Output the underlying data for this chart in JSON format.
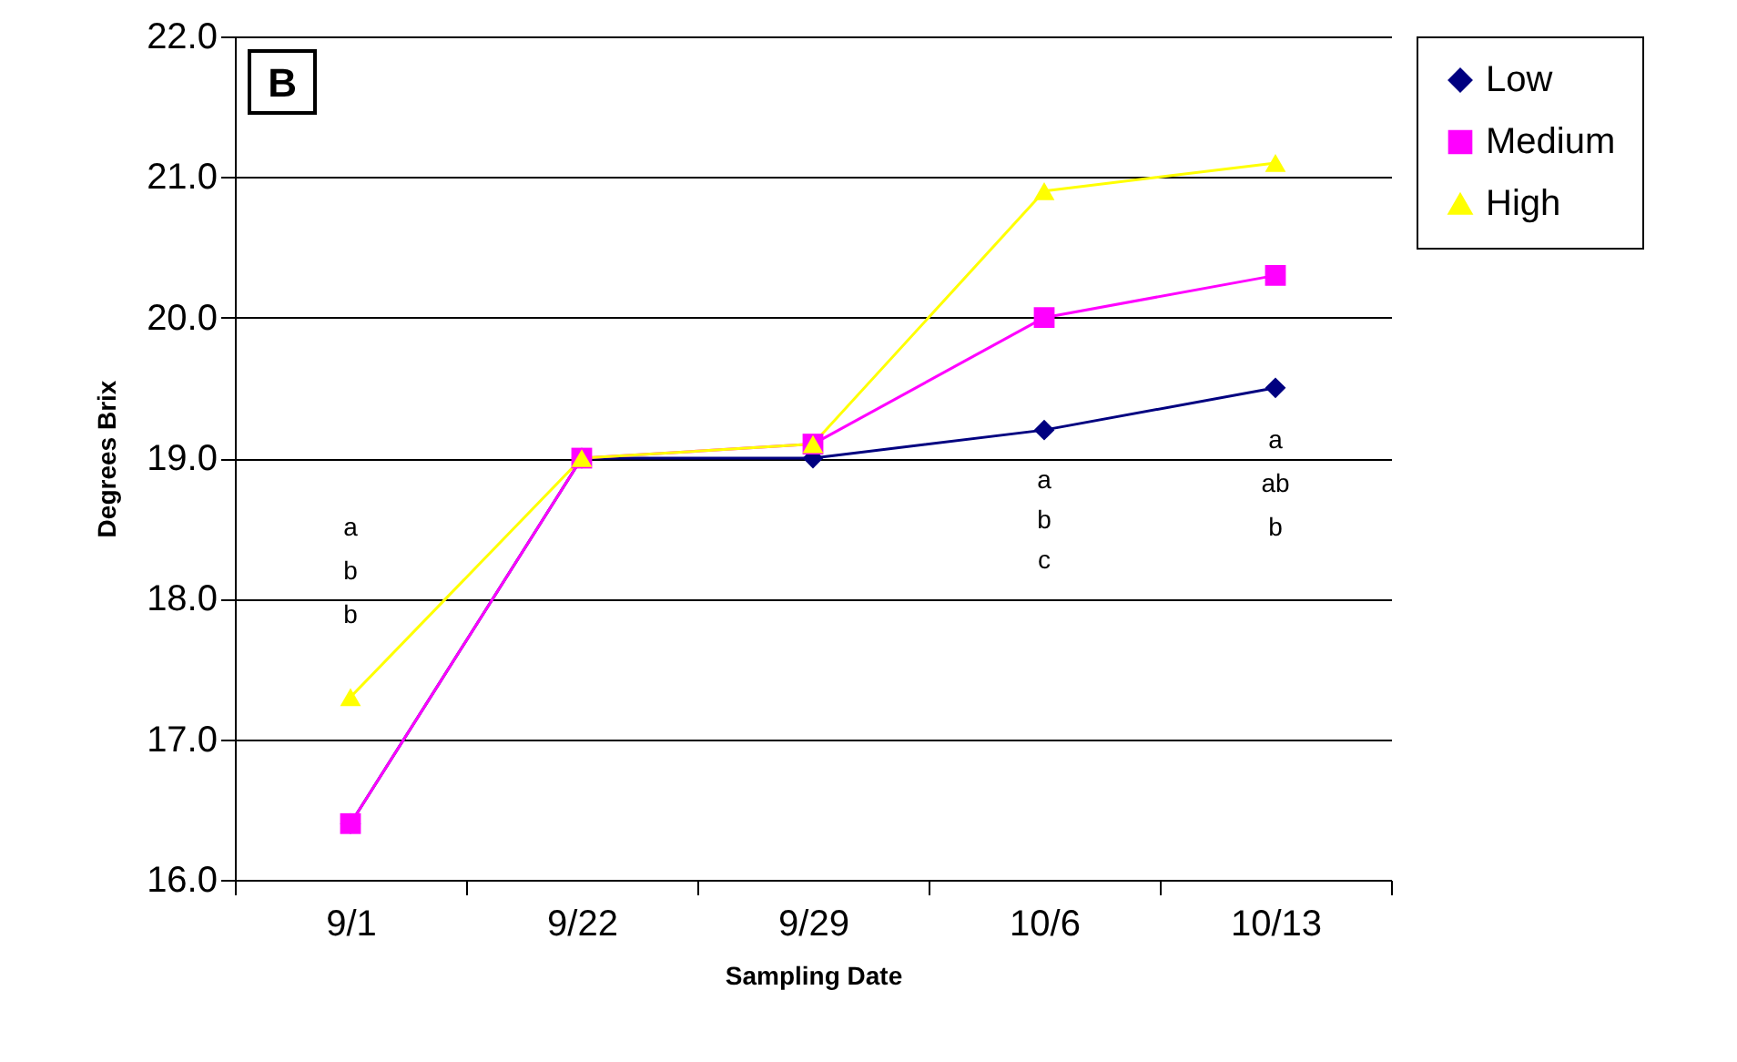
{
  "chart_data": {
    "type": "line",
    "xlabel": "Sampling Date",
    "ylabel": "Degrees Brix",
    "categories": [
      "9/1",
      "9/22",
      "9/29",
      "10/6",
      "10/13"
    ],
    "series": [
      {
        "name": "Low",
        "color": "#000080",
        "marker": "diamond",
        "values": [
          16.4,
          19.0,
          19.0,
          19.2,
          19.5
        ]
      },
      {
        "name": "Medium",
        "color": "#ff00ff",
        "marker": "square",
        "values": [
          16.4,
          19.0,
          19.1,
          20.0,
          20.3
        ]
      },
      {
        "name": "High",
        "color": "#ffff00",
        "marker": "triangle",
        "values": [
          17.3,
          19.0,
          19.1,
          20.9,
          21.1
        ]
      }
    ],
    "ylim": [
      16,
      22
    ],
    "yticks": [
      {
        "value": 16,
        "label": "16.0"
      },
      {
        "value": 17,
        "label": "17.0"
      },
      {
        "value": 18,
        "label": "18.0"
      },
      {
        "value": 19,
        "label": "19.0"
      },
      {
        "value": 20,
        "label": "20.0"
      },
      {
        "value": 21,
        "label": "21.0"
      },
      {
        "value": 22,
        "label": "22.0"
      }
    ],
    "grid": "y",
    "legend": "right",
    "annotations": [
      "B",
      "a\nb\nb",
      "a\nb\nc",
      "a\nab\nb"
    ]
  }
}
